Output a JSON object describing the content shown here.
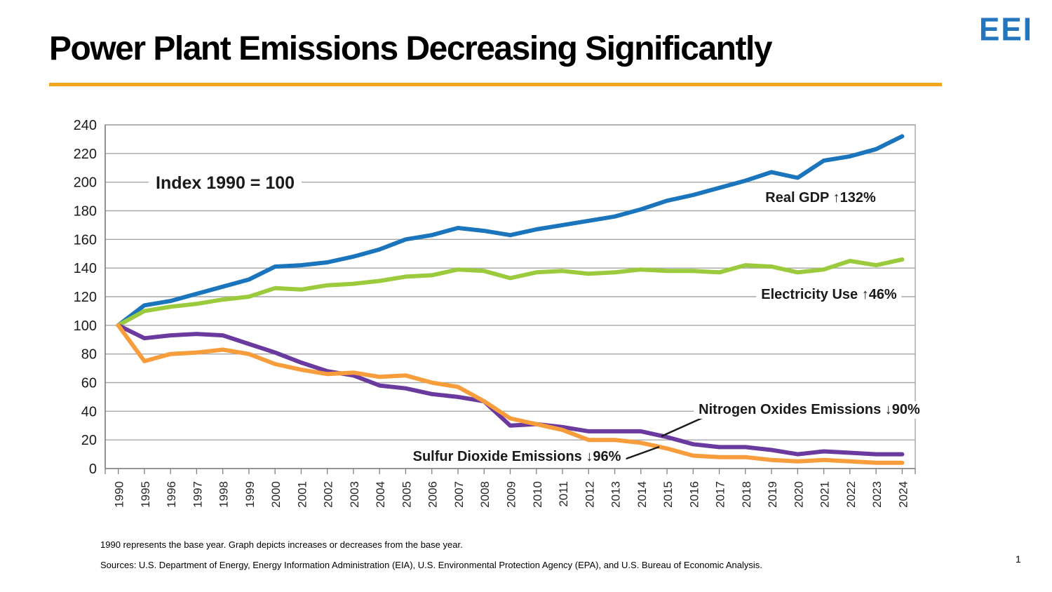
{
  "header": {
    "title": "Power Plant Emissions Decreasing Significantly",
    "logo_text": "EEI",
    "logo_color": "#2376BD",
    "rule_color": "#F2A51E"
  },
  "annotations": {
    "index_note": "Index 1990 = 100",
    "gdp": "Real GDP ↑132%",
    "electricity": "Electricity Use ↑46%",
    "nox": "Nitrogen Oxides Emissions ↓90%",
    "so2": "Sulfur Dioxide Emissions ↓96%"
  },
  "chart_data": {
    "type": "line",
    "title": "Index 1990 = 100",
    "xlabel": "",
    "ylabel": "",
    "ylim": [
      0,
      240
    ],
    "y_tick_step": 20,
    "y_ticks": [
      "0",
      "20",
      "40",
      "60",
      "80",
      "100",
      "120",
      "140",
      "160",
      "180",
      "200",
      "220",
      "240"
    ],
    "grid": true,
    "legend_position": "inline-annotations",
    "categories": [
      "1990",
      "1995",
      "1996",
      "1997",
      "1998",
      "1999",
      "2000",
      "2001",
      "2002",
      "2003",
      "2004",
      "2005",
      "2006",
      "2007",
      "2008",
      "2009",
      "2010",
      "2011",
      "2012",
      "2013",
      "2014",
      "2015",
      "2016",
      "2017",
      "2018",
      "2019",
      "2020",
      "2021",
      "2022",
      "2023",
      "2024"
    ],
    "series": [
      {
        "name": "Real GDP",
        "change_label": "↑132%",
        "color": "#1B75BC",
        "values": [
          100,
          114,
          117,
          122,
          127,
          132,
          141,
          142,
          144,
          148,
          153,
          160,
          163,
          168,
          166,
          163,
          167,
          170,
          173,
          176,
          181,
          187,
          191,
          196,
          201,
          207,
          203,
          215,
          218,
          223,
          232
        ]
      },
      {
        "name": "Electricity Use",
        "change_label": "↑46%",
        "color": "#9BCB3C",
        "values": [
          100,
          110,
          113,
          115,
          118,
          120,
          126,
          125,
          128,
          129,
          131,
          134,
          135,
          139,
          138,
          133,
          137,
          138,
          136,
          137,
          139,
          138,
          138,
          137,
          142,
          141,
          137,
          139,
          145,
          142,
          146
        ]
      },
      {
        "name": "Nitrogen Oxides Emissions",
        "change_label": "↓90%",
        "color": "#6B3A9E",
        "values": [
          100,
          91,
          93,
          94,
          93,
          87,
          81,
          74,
          68,
          65,
          58,
          56,
          52,
          50,
          47,
          30,
          31,
          29,
          26,
          26,
          26,
          22,
          17,
          15,
          15,
          13,
          10,
          12,
          11,
          10,
          10
        ]
      },
      {
        "name": "Sulfur Dioxide Emissions",
        "change_label": "↓96%",
        "color": "#F89D3C",
        "values": [
          100,
          75,
          80,
          81,
          83,
          80,
          73,
          69,
          66,
          67,
          64,
          65,
          60,
          57,
          47,
          35,
          31,
          27,
          20,
          20,
          18,
          14,
          9,
          8,
          8,
          6,
          5,
          6,
          5,
          4,
          4
        ]
      }
    ],
    "axis_note": "x axis shows 1990 then annual 1995-2024"
  },
  "footer": {
    "note": "1990 represents the base year. Graph depicts increases or decreases from the base year.",
    "sources": "Sources: U.S. Department of Energy, Energy Information Administration (EIA), U.S. Environmental Protection Agency (EPA), and U.S. Bureau of Economic Analysis.",
    "page_number": "1"
  }
}
